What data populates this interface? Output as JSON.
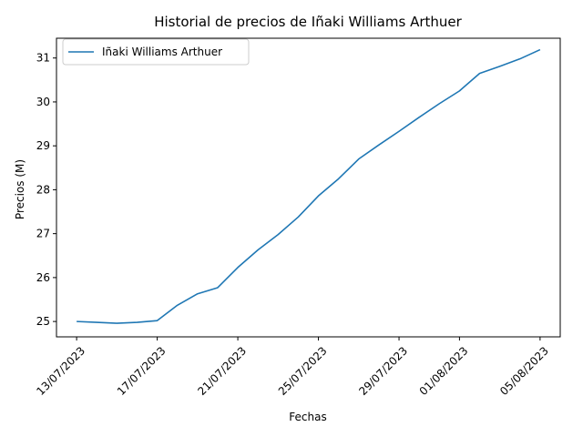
{
  "chart_data": {
    "type": "line",
    "title": "Historial de precios de Iñaki Williams Arthuer",
    "xlabel": "Fechas",
    "ylabel": "Precios (M)",
    "x_ticks": [
      "13/07/2023",
      "17/07/2023",
      "21/07/2023",
      "25/07/2023",
      "29/07/2023",
      "01/08/2023",
      "05/08/2023"
    ],
    "y_ticks": [
      "25",
      "26",
      "27",
      "28",
      "29",
      "30",
      "31"
    ],
    "ylim": [
      24.65,
      31.45
    ],
    "xlim": [
      "2023-07-12",
      "2023-08-06"
    ],
    "legend_position": "upper-left",
    "grid": false,
    "series": [
      {
        "name": "Iñaki Williams Arthuer",
        "color": "#1f77b4",
        "x": [
          "2023-07-13",
          "2023-07-14",
          "2023-07-15",
          "2023-07-16",
          "2023-07-17",
          "2023-07-18",
          "2023-07-19",
          "2023-07-20",
          "2023-07-21",
          "2023-07-22",
          "2023-07-23",
          "2023-07-24",
          "2023-07-25",
          "2023-07-26",
          "2023-07-27",
          "2023-07-28",
          "2023-07-29",
          "2023-07-30",
          "2023-07-31",
          "2023-08-01",
          "2023-08-02",
          "2023-08-03",
          "2023-08-04",
          "2023-08-05"
        ],
        "values": [
          25.0,
          24.98,
          24.96,
          24.98,
          25.02,
          25.37,
          25.63,
          25.77,
          26.23,
          26.63,
          26.98,
          27.38,
          27.86,
          28.25,
          28.7,
          29.02,
          29.33,
          29.65,
          29.96,
          30.25,
          30.65,
          30.81,
          30.98,
          31.19
        ]
      }
    ]
  }
}
